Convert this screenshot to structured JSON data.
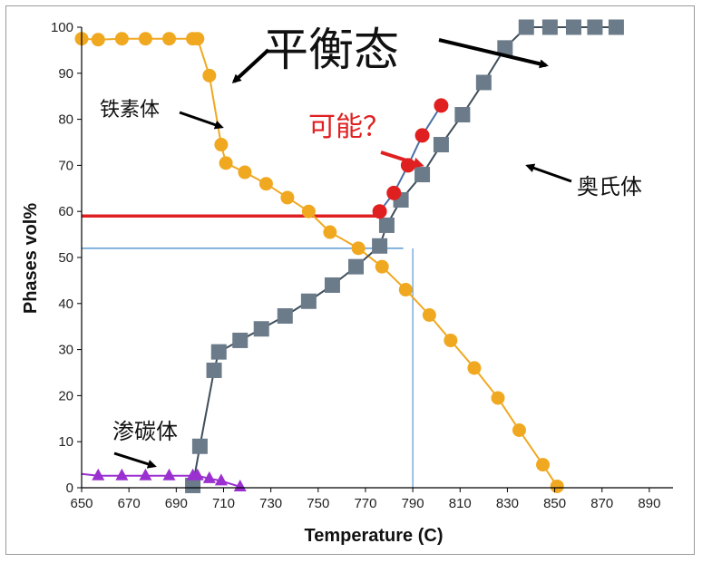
{
  "chart_data": {
    "type": "line",
    "xlabel": "Temperature (C)",
    "ylabel": "Phases vol%",
    "xlim": [
      650,
      900
    ],
    "ylim": [
      0,
      100
    ],
    "x_ticks": [
      650,
      670,
      690,
      710,
      730,
      750,
      770,
      790,
      810,
      830,
      850,
      870,
      890
    ],
    "y_ticks": [
      0,
      10,
      20,
      30,
      40,
      50,
      60,
      70,
      80,
      90,
      100
    ],
    "grid": false,
    "series": [
      {
        "name": "铁素体",
        "color": "#f0a820",
        "marker": "circle",
        "points": [
          [
            650,
            97.5
          ],
          [
            657,
            97.3
          ],
          [
            667,
            97.5
          ],
          [
            677,
            97.5
          ],
          [
            687,
            97.5
          ],
          [
            697,
            97.5
          ],
          [
            699,
            97.5
          ],
          [
            704,
            89.5
          ],
          [
            709,
            74.5
          ],
          [
            711,
            70.5
          ],
          [
            719,
            68.5
          ],
          [
            728,
            66
          ],
          [
            737,
            63
          ],
          [
            746,
            60
          ],
          [
            755,
            55.5
          ],
          [
            767,
            52
          ],
          [
            777,
            48
          ],
          [
            787,
            43
          ],
          [
            797,
            37.5
          ],
          [
            806,
            32
          ],
          [
            816,
            26
          ],
          [
            826,
            19.5
          ],
          [
            835,
            12.5
          ],
          [
            845,
            5
          ],
          [
            851,
            0.3
          ]
        ]
      },
      {
        "name": "奥氏体",
        "color": "#6b7b8a",
        "marker": "square",
        "points": [
          [
            697,
            0.5
          ],
          [
            700,
            9
          ],
          [
            706,
            25.5
          ],
          [
            708,
            29.5
          ],
          [
            717,
            32
          ],
          [
            726,
            34.5
          ],
          [
            736,
            37.3
          ],
          [
            746,
            40.5
          ],
          [
            756,
            44
          ],
          [
            766,
            48
          ],
          [
            776,
            52.5
          ],
          [
            779,
            57
          ],
          [
            785,
            62.5
          ],
          [
            794,
            68
          ],
          [
            802,
            74.5
          ],
          [
            811,
            81
          ],
          [
            820,
            88
          ],
          [
            829,
            95.5
          ],
          [
            838,
            100
          ],
          [
            848,
            100
          ],
          [
            858,
            100
          ],
          [
            867,
            100
          ],
          [
            876,
            100
          ]
        ]
      },
      {
        "name": "渗碳体",
        "color": "#9b30d0",
        "marker": "triangle",
        "points": [
          [
            650,
            3
          ],
          [
            657,
            2.6
          ],
          [
            667,
            2.6
          ],
          [
            677,
            2.6
          ],
          [
            687,
            2.6
          ],
          [
            697,
            2.6
          ],
          [
            699,
            2.6
          ],
          [
            704,
            2
          ],
          [
            709,
            1.5
          ],
          [
            717,
            0.2
          ]
        ]
      },
      {
        "name": "可能",
        "color": "#e02020",
        "marker": "circle",
        "points": [
          [
            776,
            60
          ],
          [
            782,
            64
          ],
          [
            788,
            70
          ],
          [
            794,
            76.5
          ],
          [
            802,
            83
          ]
        ]
      }
    ],
    "annotations": [
      {
        "text": "平衡态",
        "size": "large"
      },
      {
        "text": "铁素体"
      },
      {
        "text": "奥氏体"
      },
      {
        "text": "渗碳体"
      },
      {
        "text": "可能？",
        "color": "#e02020"
      }
    ],
    "reference_lines": [
      {
        "type": "horizontal",
        "y": 59,
        "x_end": 776,
        "color": "#e02020"
      },
      {
        "type": "horizontal",
        "y": 52,
        "x_end": 786,
        "color": "#5b9bd5"
      },
      {
        "type": "vertical",
        "x": 790,
        "y_end": 52,
        "color": "#5b9bd5"
      }
    ]
  }
}
